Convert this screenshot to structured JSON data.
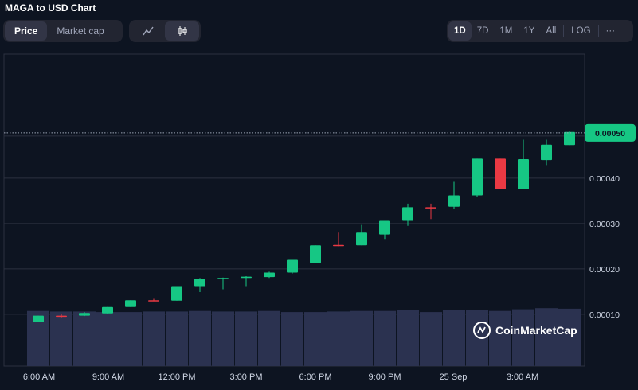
{
  "header": {
    "title": "MAGA to USD Chart"
  },
  "toolbar": {
    "type_tabs": [
      {
        "label": "Price",
        "active": true
      },
      {
        "label": "Market cap",
        "active": false
      }
    ],
    "style_icons": [
      "line-chart-icon",
      "candlestick-icon"
    ],
    "ranges": [
      "1D",
      "7D",
      "1M",
      "1Y",
      "All"
    ],
    "active_range": "1D",
    "log_label": "LOG",
    "more_label": "···"
  },
  "watermark": {
    "text": "CoinMarketCap",
    "icon": "coinmarketcap-logo"
  },
  "colors": {
    "up": "#16c784",
    "down": "#ea3943",
    "volume": "#2b3250",
    "background": "#0d1421",
    "grid": "#2c3140"
  },
  "chart_data": {
    "type": "candlestick",
    "ylim": [
      7e-05,
      0.00053
    ],
    "yticks": [
      0.0001,
      0.0002,
      0.0003,
      0.0004
    ],
    "ytick_labels": [
      "0.00010",
      "0.00020",
      "0.00030",
      "0.00040"
    ],
    "xtick_labels": [
      "6:00 AM",
      "9:00 AM",
      "12:00 PM",
      "3:00 PM",
      "6:00 PM",
      "9:00 PM",
      "25 Sep",
      "3:00 AM"
    ],
    "current_price": 0.0005,
    "current_price_label": "0.00050",
    "candles": [
      {
        "o": 8.3e-05,
        "h": 9.7e-05,
        "l": 8.3e-05,
        "c": 9.7e-05
      },
      {
        "o": 9.7e-05,
        "h": 0.000101,
        "l": 9.3e-05,
        "c": 9.6e-05
      },
      {
        "o": 9.7e-05,
        "h": 0.000105,
        "l": 9.6e-05,
        "c": 0.000103
      },
      {
        "o": 0.000102,
        "h": 0.000116,
        "l": 0.000101,
        "c": 0.000116
      },
      {
        "o": 0.000116,
        "h": 0.000131,
        "l": 0.000116,
        "c": 0.000131
      },
      {
        "o": 0.000131,
        "h": 0.000134,
        "l": 0.000129,
        "c": 0.00013
      },
      {
        "o": 0.00013,
        "h": 0.000162,
        "l": 0.00013,
        "c": 0.000162
      },
      {
        "o": 0.000162,
        "h": 0.00018,
        "l": 0.000149,
        "c": 0.000178
      },
      {
        "o": 0.000177,
        "h": 0.000181,
        "l": 0.000155,
        "c": 0.00018
      },
      {
        "o": 0.00018,
        "h": 0.000184,
        "l": 0.000162,
        "c": 0.000183
      },
      {
        "o": 0.000182,
        "h": 0.000194,
        "l": 0.00018,
        "c": 0.000192
      },
      {
        "o": 0.000192,
        "h": 0.00022,
        "l": 0.00019,
        "c": 0.00022
      },
      {
        "o": 0.000213,
        "h": 0.000252,
        "l": 0.000213,
        "c": 0.000252
      },
      {
        "o": 0.000253,
        "h": 0.00028,
        "l": 0.00025,
        "c": 0.000252
      },
      {
        "o": 0.000252,
        "h": 0.000297,
        "l": 0.000252,
        "c": 0.00028
      },
      {
        "o": 0.000276,
        "h": 0.000306,
        "l": 0.000266,
        "c": 0.000306
      },
      {
        "o": 0.000306,
        "h": 0.000344,
        "l": 0.000295,
        "c": 0.000336
      },
      {
        "o": 0.000336,
        "h": 0.000344,
        "l": 0.00031,
        "c": 0.000335
      },
      {
        "o": 0.000337,
        "h": 0.000392,
        "l": 0.000333,
        "c": 0.000362
      },
      {
        "o": 0.000362,
        "h": 0.000443,
        "l": 0.000358,
        "c": 0.000443
      },
      {
        "o": 0.000443,
        "h": 0.000443,
        "l": 0.000376,
        "c": 0.000376
      },
      {
        "o": 0.000376,
        "h": 0.000485,
        "l": 0.000376,
        "c": 0.000442
      },
      {
        "o": 0.00044,
        "h": 0.000485,
        "l": 0.000429,
        "c": 0.000474
      },
      {
        "o": 0.000473,
        "h": 0.000503,
        "l": 0.000473,
        "c": 0.000502
      }
    ],
    "volume_relative": [
      0.99,
      0.98,
      0.98,
      0.97,
      0.97,
      0.98,
      0.98,
      0.99,
      0.98,
      0.98,
      0.99,
      0.97,
      0.97,
      0.98,
      0.99,
      0.99,
      1.0,
      0.97,
      1.01,
      1.0,
      0.99,
      1.02,
      1.04,
      1.03
    ]
  }
}
